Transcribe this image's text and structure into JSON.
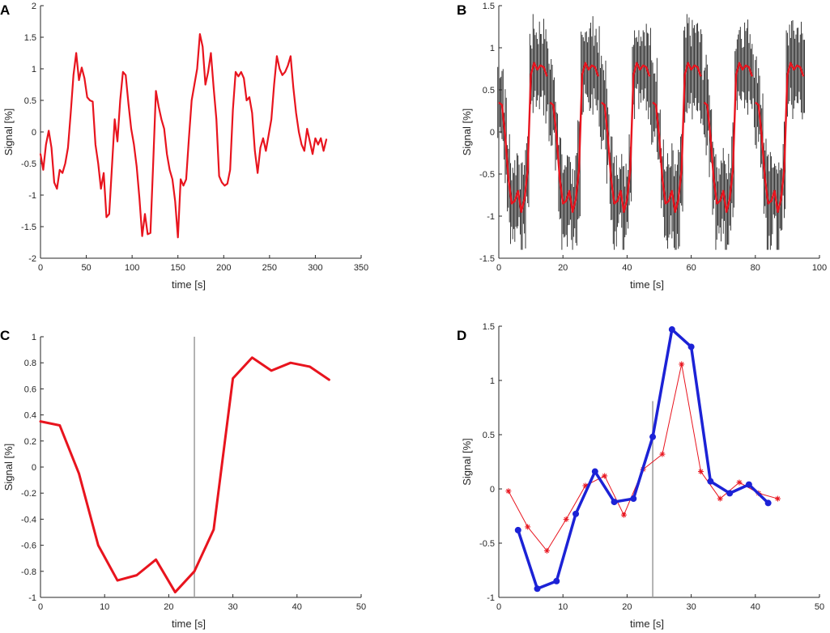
{
  "colors": {
    "red": "#e8141e",
    "blue": "#1c22d6",
    "axis": "#262626",
    "gray": "#9a9a9a",
    "black": "#222222"
  },
  "chart_data": [
    {
      "panel": "A",
      "type": "line",
      "xlabel": "time [s]",
      "ylabel": "Signal [%]",
      "xlim": [
        0,
        350
      ],
      "ylim": [
        -2,
        2
      ],
      "xticks": [
        0,
        50,
        100,
        150,
        200,
        250,
        300,
        350
      ],
      "yticks": [
        -2,
        -1.5,
        -1,
        -0.5,
        0,
        0.5,
        1,
        1.5,
        2
      ],
      "series": [
        {
          "name": "signal",
          "color": "#e8141e",
          "width": 2.2,
          "x": [
            0,
            3,
            6,
            9,
            12,
            15,
            18,
            21,
            24,
            27,
            30,
            33,
            36,
            39,
            42,
            45,
            48,
            51,
            54,
            57,
            60,
            63,
            66,
            69,
            72,
            75,
            78,
            81,
            84,
            87,
            90,
            93,
            96,
            99,
            102,
            105,
            108,
            111,
            114,
            117,
            120,
            123,
            126,
            129,
            132,
            135,
            138,
            141,
            144,
            147,
            150,
            153,
            156,
            159,
            162,
            165,
            168,
            171,
            174,
            177,
            180,
            183,
            186,
            189,
            192,
            195,
            198,
            201,
            204,
            207,
            210,
            213,
            216,
            219,
            222,
            225,
            228,
            231,
            234,
            237,
            240,
            243,
            246,
            249,
            252,
            255,
            258,
            261,
            264,
            267,
            270,
            273,
            276,
            279,
            282,
            285,
            288,
            291,
            294,
            297,
            300,
            303,
            306,
            309,
            312
          ],
          "y": [
            -0.35,
            -0.6,
            -0.2,
            0.02,
            -0.25,
            -0.8,
            -0.9,
            -0.6,
            -0.65,
            -0.5,
            -0.25,
            0.3,
            0.9,
            1.25,
            0.82,
            1.02,
            0.85,
            0.55,
            0.5,
            0.48,
            -0.2,
            -0.5,
            -0.9,
            -0.65,
            -1.35,
            -1.3,
            -0.55,
            0.2,
            -0.15,
            0.5,
            0.95,
            0.9,
            0.45,
            0.05,
            -0.2,
            -0.55,
            -1.05,
            -1.65,
            -1.3,
            -1.62,
            -1.6,
            -0.5,
            0.65,
            0.4,
            0.2,
            0.05,
            -0.35,
            -0.6,
            -0.75,
            -1.1,
            -1.67,
            -0.75,
            -0.85,
            -0.75,
            -0.1,
            0.5,
            0.75,
            1.0,
            1.55,
            1.35,
            0.75,
            0.95,
            1.25,
            0.7,
            0.2,
            -0.7,
            -0.8,
            -0.85,
            -0.82,
            -0.6,
            0.35,
            0.95,
            0.88,
            0.95,
            0.85,
            0.5,
            0.55,
            0.3,
            -0.3,
            -0.65,
            -0.25,
            -0.1,
            -0.3,
            -0.05,
            0.2,
            0.75,
            1.2,
            1.0,
            0.9,
            0.95,
            1.05,
            1.2,
            0.7,
            0.3,
            0.0,
            -0.2,
            -0.3,
            0.05,
            -0.15,
            -0.35,
            -0.1,
            -0.2,
            -0.1,
            -0.3,
            -0.12
          ]
        }
      ]
    },
    {
      "panel": "B",
      "type": "line",
      "xlabel": "time [s]",
      "ylabel": "Signal [%]",
      "xlim": [
        0,
        100
      ],
      "ylim": [
        -1.5,
        1.5
      ],
      "xticks": [
        0,
        20,
        40,
        60,
        80,
        100
      ],
      "yticks": [
        -1.5,
        -1,
        -0.5,
        0,
        0.5,
        1,
        1.5
      ],
      "cycles": [
        0,
        16,
        32,
        48,
        64,
        80
      ],
      "cycle_profile": {
        "t": [
          0,
          1,
          2,
          3,
          4,
          5,
          6,
          7,
          8,
          9,
          10,
          11,
          12,
          13,
          14,
          15
        ],
        "v": [
          0.35,
          0.32,
          -0.05,
          -0.55,
          -0.85,
          -0.82,
          -0.7,
          -0.95,
          -0.8,
          -0.45,
          0.68,
          0.82,
          0.74,
          0.79,
          0.77,
          0.66
        ]
      },
      "series": [
        {
          "name": "mean",
          "color": "#e8141e",
          "width": 2.2
        },
        {
          "name": "individual",
          "color": "#222222",
          "width": 1
        }
      ]
    },
    {
      "panel": "C",
      "type": "line",
      "xlabel": "time [s]",
      "ylabel": "Signal [%]",
      "xlim": [
        0,
        50
      ],
      "ylim": [
        -1,
        1
      ],
      "xticks": [
        0,
        10,
        20,
        30,
        40,
        50
      ],
      "yticks": [
        -1,
        -0.8,
        -0.6,
        -0.4,
        -0.2,
        0,
        0.2,
        0.4,
        0.6,
        0.8,
        1
      ],
      "vline": 24,
      "series": [
        {
          "name": "mean",
          "color": "#e8141e",
          "width": 3,
          "x": [
            0,
            3,
            6,
            9,
            12,
            15,
            18,
            21,
            24,
            27,
            30,
            33,
            36,
            39,
            42,
            45
          ],
          "y": [
            0.35,
            0.32,
            -0.05,
            -0.6,
            -0.87,
            -0.83,
            -0.71,
            -0.96,
            -0.8,
            -0.48,
            0.68,
            0.84,
            0.74,
            0.8,
            0.77,
            0.67
          ]
        }
      ]
    },
    {
      "panel": "D",
      "type": "line",
      "xlabel": "time [s]",
      "ylabel": "Signal [%]",
      "xlim": [
        0,
        50
      ],
      "ylim": [
        -1,
        1.5
      ],
      "xticks": [
        0,
        10,
        20,
        30,
        40,
        50
      ],
      "yticks": [
        -1,
        -0.5,
        0,
        0.5,
        1,
        1.5
      ],
      "vline": 24,
      "series": [
        {
          "name": "red",
          "color": "#e8141e",
          "width": 1,
          "marker": "star",
          "x": [
            1.5,
            4.5,
            7.5,
            10.5,
            13.5,
            16.5,
            19.5,
            22.5,
            25.5,
            28.5,
            31.5,
            34.5,
            37.5,
            40.5,
            43.5
          ],
          "y": [
            -0.02,
            -0.35,
            -0.57,
            -0.28,
            0.03,
            0.12,
            -0.24,
            0.18,
            0.32,
            1.15,
            0.16,
            -0.09,
            0.06,
            -0.04,
            -0.09
          ]
        },
        {
          "name": "blue",
          "color": "#1c22d6",
          "width": 3.5,
          "marker": "circle",
          "x": [
            3,
            6,
            9,
            12,
            15,
            18,
            21,
            24,
            27,
            30,
            33,
            36,
            39,
            42
          ],
          "y": [
            -0.38,
            -0.92,
            -0.85,
            -0.23,
            0.16,
            -0.12,
            -0.09,
            0.48,
            1.47,
            1.31,
            0.07,
            -0.04,
            0.04,
            -0.13
          ]
        }
      ]
    }
  ]
}
